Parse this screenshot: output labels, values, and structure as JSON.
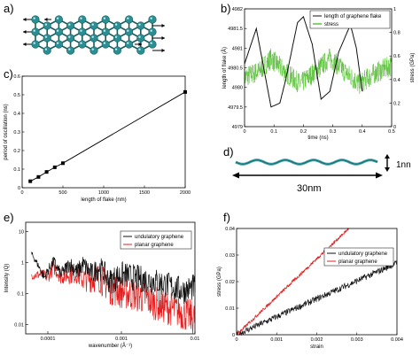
{
  "panel_labels": {
    "a": "a)",
    "b": "b)",
    "c": "c)",
    "d": "d)",
    "e": "e)",
    "f": "f)"
  },
  "colors": {
    "axis": "#000000",
    "atom": "#2a8f93",
    "atom_outline": "#1b5c5e",
    "red": "#e02020",
    "green": "#5cc23a",
    "black": "#111111",
    "teal": "#3aa0a6"
  },
  "dimension_d": {
    "height_label": "1nn",
    "length_label": "30nm"
  },
  "chart_data": [
    {
      "id": "b",
      "type": "line",
      "xlabel": "time (ns)",
      "ylabel": "length of flake (Å)",
      "y2label": "stress (GPa)",
      "xlim": [
        0,
        0.5
      ],
      "ylim": [
        4979,
        4982
      ],
      "y2lim": [
        0,
        1
      ],
      "xticks": [
        "0",
        "0.1",
        "0.2",
        "0.3",
        "0.4",
        "0.5"
      ],
      "yticks": [
        "4979",
        "4979.5",
        "4980",
        "4980.5",
        "4981",
        "4981.5",
        "4982"
      ],
      "y2ticks": [
        "0",
        "0.2",
        "0.4",
        "0.6",
        "0.8",
        "1"
      ],
      "legend": {
        "position": "top-right",
        "entries": [
          "length of graphene flake",
          "stress"
        ]
      },
      "series": [
        {
          "name": "length of graphene flake",
          "axis": "left",
          "x": [
            0,
            0.04,
            0.09,
            0.12,
            0.14,
            0.18,
            0.2,
            0.23,
            0.26,
            0.29,
            0.32,
            0.36,
            0.38,
            0.4
          ],
          "y": [
            4980.6,
            4981.5,
            4979.5,
            4979.6,
            4980.2,
            4981.65,
            4981.8,
            4981.1,
            4979.7,
            4979.9,
            4980.9,
            4981.6,
            4981.0,
            4979.9
          ]
        },
        {
          "name": "stress",
          "axis": "right",
          "x": [
            0,
            0.05,
            0.09,
            0.14,
            0.19,
            0.24,
            0.29,
            0.34,
            0.39,
            0.44,
            0.5
          ],
          "y": [
            0.42,
            0.47,
            0.58,
            0.46,
            0.36,
            0.47,
            0.58,
            0.47,
            0.36,
            0.45,
            0.52
          ],
          "noise": 0.09
        }
      ]
    },
    {
      "id": "c",
      "type": "line",
      "xlabel": "length of flake (nm)",
      "ylabel": "period of oscillation (ns)",
      "xlim": [
        0,
        2000
      ],
      "ylim": [
        0,
        0.6
      ],
      "xticks": [
        "0",
        "500",
        "1000",
        "1500",
        "2000"
      ],
      "yticks": [
        "0",
        "0.1",
        "0.2",
        "0.3",
        "0.4",
        "0.5",
        "0.6"
      ],
      "series": [
        {
          "x": [
            100,
            200,
            300,
            400,
            500,
            2000
          ],
          "y": [
            0.035,
            0.058,
            0.085,
            0.11,
            0.132,
            0.515
          ]
        }
      ]
    },
    {
      "id": "e",
      "type": "line",
      "log_x": true,
      "log_y": true,
      "xlabel": "wavenumber (Å⁻¹)",
      "ylabel": "Intensity (Q)",
      "xlim": [
        5e-05,
        0.01
      ],
      "ylim": [
        0.005,
        20
      ],
      "xticks": [
        "0.0001",
        "0.001",
        "0.01"
      ],
      "yticks": [
        "0.01",
        "0.1",
        "1",
        "10"
      ],
      "legend": {
        "position": "top-right",
        "entries": [
          "undulatory graphene",
          "planar graphene"
        ]
      },
      "series": [
        {
          "name": "undulatory graphene",
          "x": [
            6e-05,
            7e-05,
            9e-05,
            0.0001,
            0.00012,
            0.00015,
            0.0002,
            0.00025,
            0.0003,
            0.0004,
            0.0005,
            0.0007,
            0.001,
            0.0015,
            0.002,
            0.003,
            0.005,
            0.007,
            0.01
          ],
          "y": [
            2.0,
            1.1,
            0.35,
            0.6,
            1.2,
            0.45,
            1.05,
            0.55,
            1.0,
            0.5,
            0.85,
            0.3,
            0.5,
            0.4,
            0.35,
            0.3,
            0.2,
            0.15,
            0.2
          ],
          "noise": 0.55
        },
        {
          "name": "planar graphene",
          "x": [
            6e-05,
            8e-05,
            0.0001,
            0.00012,
            0.00015,
            0.0002,
            0.00025,
            0.0003,
            0.0005,
            0.0007,
            0.001,
            0.0015,
            0.002,
            0.003,
            0.005,
            0.007,
            0.01
          ],
          "y": [
            0.4,
            0.45,
            0.38,
            0.8,
            0.42,
            0.5,
            0.55,
            0.35,
            0.4,
            0.2,
            0.15,
            0.12,
            0.1,
            0.06,
            0.04,
            0.03,
            0.02
          ],
          "noise": 0.7
        }
      ]
    },
    {
      "id": "f",
      "type": "line",
      "xlabel": "strain",
      "ylabel": "stress (GPa)",
      "xlim": [
        0,
        0.004
      ],
      "ylim": [
        0,
        0.04
      ],
      "xticks": [
        "0",
        "0.001",
        "0.002",
        "0.003",
        "0.004"
      ],
      "yticks": [
        "0",
        "0.01",
        "0.02",
        "0.03",
        "0.04"
      ],
      "legend": {
        "position": "center-right",
        "entries": [
          "undulatory graphene",
          "planar graphene"
        ]
      },
      "series": [
        {
          "name": "undulatory graphene",
          "x": [
            0,
            0.004
          ],
          "y": [
            0,
            0.027
          ],
          "noise": 0.0012
        },
        {
          "name": "planar graphene",
          "x": [
            0,
            0.0028
          ],
          "y": [
            0,
            0.04
          ],
          "noise": 0.0006
        }
      ]
    }
  ]
}
